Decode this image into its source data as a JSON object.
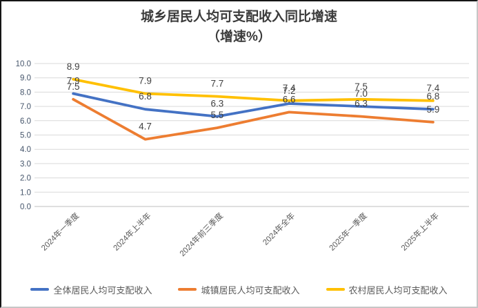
{
  "title": {
    "line1": "城乡居民人均可支配收入同比增速",
    "line2": "（增速%）"
  },
  "chart_data": {
    "type": "line",
    "title": "城乡居民人均可支配收入同比增速",
    "subtitle": "（增速%）",
    "categories": [
      "2024年一季度",
      "2024年上半年",
      "2024年前三季度",
      "2024年全年",
      "2025年一季度",
      "2025年上半年"
    ],
    "series": [
      {
        "name": "全体居民人均可支配收入",
        "color": "#4472C4",
        "values": [
          7.9,
          6.8,
          6.3,
          7.2,
          7.0,
          6.8
        ]
      },
      {
        "name": "城镇居民人均可支配收入",
        "color": "#ED7D31",
        "values": [
          7.5,
          4.7,
          5.5,
          6.6,
          6.3,
          5.9
        ]
      },
      {
        "name": "农村居民人均可支配收入",
        "color": "#FFC000",
        "values": [
          8.9,
          7.9,
          7.7,
          7.4,
          7.5,
          7.4
        ]
      }
    ],
    "ylim": [
      0,
      10
    ],
    "ytick_step": 1.0,
    "ytick_labels": [
      "0.0",
      "1.0",
      "2.0",
      "3.0",
      "4.0",
      "5.0",
      "6.0",
      "7.0",
      "8.0",
      "9.0",
      "10.0"
    ],
    "grid": true,
    "data_labels": true,
    "legend_position": "bottom",
    "xlabel": "",
    "ylabel": ""
  },
  "colors": {
    "grid_line": "#D9D9D9",
    "axis_line": "#BFBFBF",
    "y_tick_label": "#44546A",
    "x_tick_label": "#595959",
    "data_label": "#404040",
    "title_text": "#3b3b3b",
    "legend_text": "#595959",
    "background": "#ffffff"
  }
}
